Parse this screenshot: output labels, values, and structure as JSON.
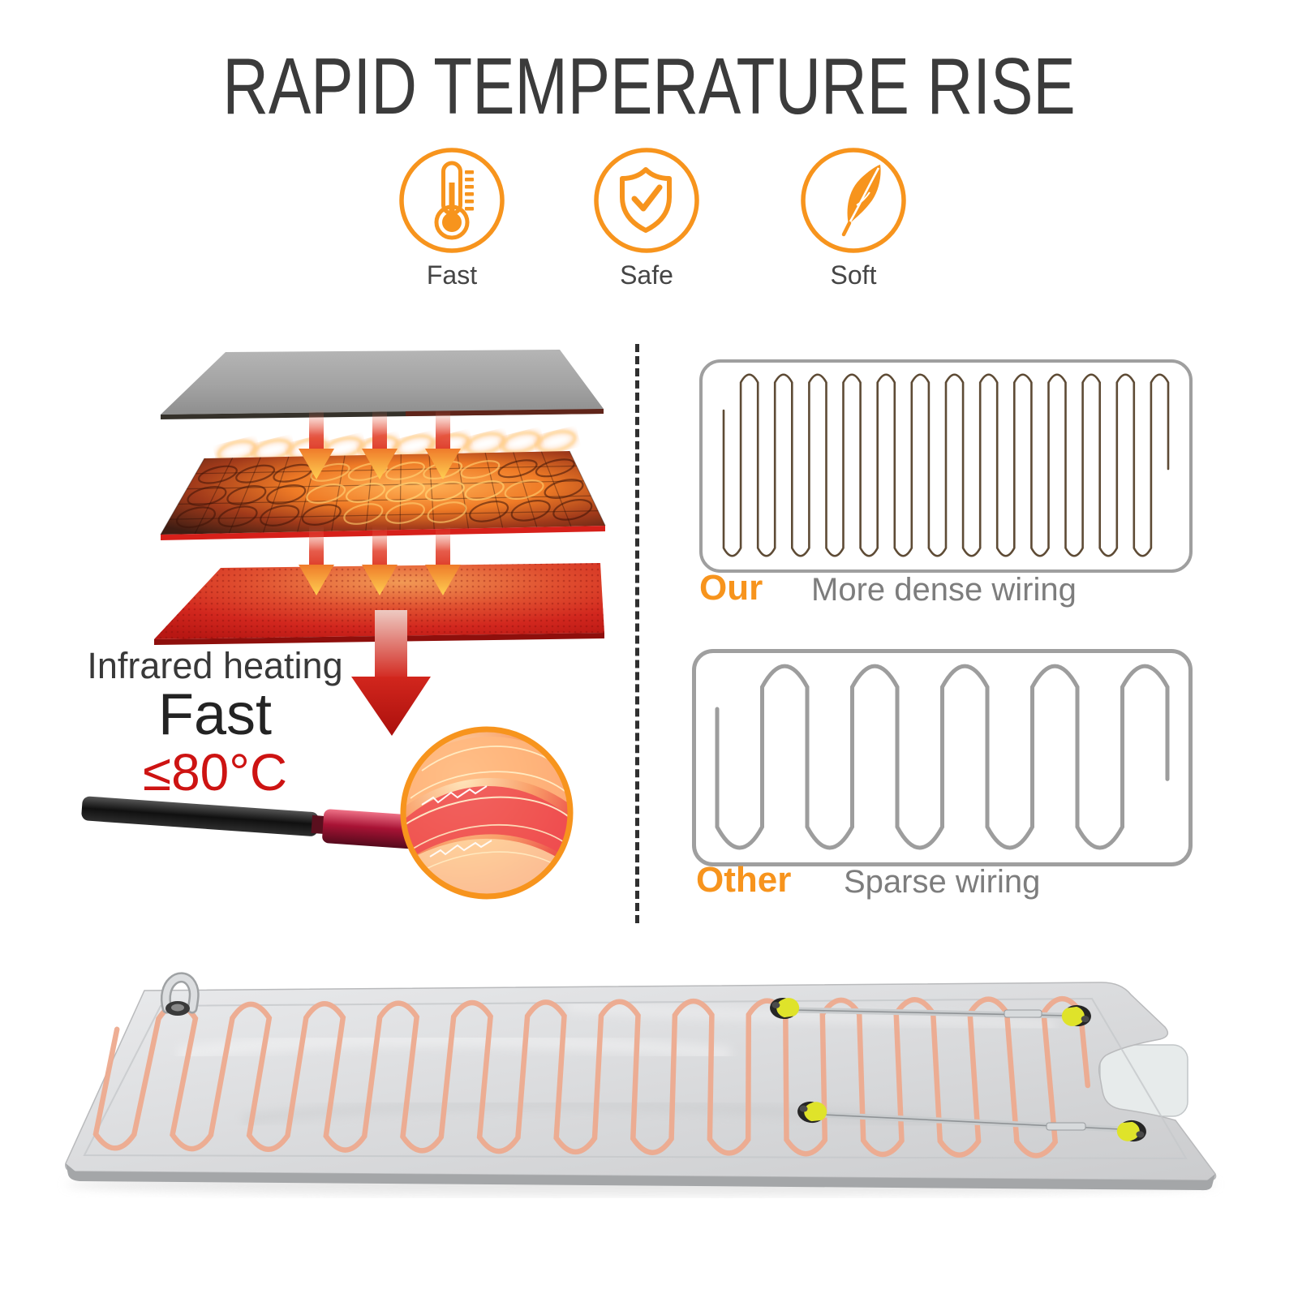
{
  "title": "RAPID TEMPERATURE RISE",
  "features": [
    {
      "icon": "thermometer-icon",
      "label": "Fast"
    },
    {
      "icon": "shield-check-icon",
      "label": "Safe"
    },
    {
      "icon": "feather-icon",
      "label": "Soft"
    }
  ],
  "infrared": {
    "line1": "Infrared heating",
    "line2": "Fast",
    "line3": "≤80°C"
  },
  "comparison": {
    "ours": {
      "label": "Our",
      "description": "More dense wiring",
      "wire_turns": 13,
      "wire_color": "#5e4b35",
      "wire_width": 2.6
    },
    "other": {
      "label": "Other",
      "description": "Sparse wiring",
      "wire_turns": 5,
      "wire_color": "#9d9d9d",
      "wire_width": 5
    }
  },
  "mat": {
    "wire_turns": 13,
    "wire_color": "#edaa8e"
  },
  "colors": {
    "accent_orange": "#F7941D",
    "temp_red": "#CD1312",
    "title_gray": "#3B3B3B",
    "label_gray": "#454545",
    "desc_gray": "#7D7D7D",
    "box_border": "#9F9F9F"
  }
}
